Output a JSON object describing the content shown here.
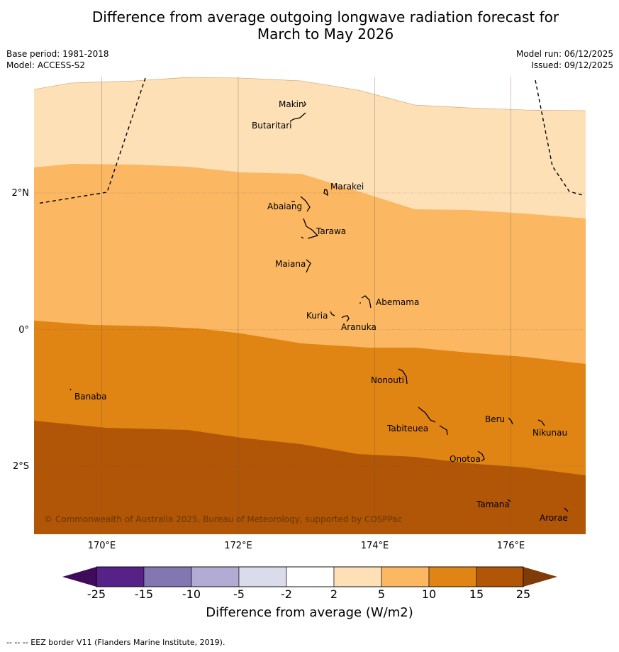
{
  "title": {
    "line1": "Difference from average outgoing longwave radiation forecast for",
    "line2": "March to May 2026"
  },
  "meta": {
    "base_period": "Base period: 1981-2018",
    "model": "Model: ACCESS-S2",
    "model_run": "Model run: 06/12/2025",
    "issued": "Issued: 09/12/2025"
  },
  "axes": {
    "lon_labels": [
      "170°E",
      "172°E",
      "174°E",
      "176°E"
    ],
    "lat_labels": [
      "2°N",
      "0°",
      "2°S"
    ]
  },
  "places": [
    {
      "name": "Makin"
    },
    {
      "name": "Butaritari"
    },
    {
      "name": "Marakei"
    },
    {
      "name": "Abaiang"
    },
    {
      "name": "Tarawa"
    },
    {
      "name": "Maiana"
    },
    {
      "name": "Abemama"
    },
    {
      "name": "Kuria"
    },
    {
      "name": "Aranuka"
    },
    {
      "name": "Nonouti"
    },
    {
      "name": "Banaba"
    },
    {
      "name": "Beru"
    },
    {
      "name": "Nikunau"
    },
    {
      "name": "Tabiteuea"
    },
    {
      "name": "Onotoa"
    },
    {
      "name": "Tamana"
    },
    {
      "name": "Arorae"
    }
  ],
  "copyright": "© Commonwealth of Australia 2025, Bureau of Meteorology, supported by COSPPac",
  "colorbar": {
    "title": "Difference from average (W/m2)",
    "ticks": [
      "-25",
      "-15",
      "-10",
      "-5",
      "-2",
      "2",
      "5",
      "10",
      "15",
      "25"
    ],
    "colors": [
      "#3f0c5c",
      "#562287",
      "#8277b0",
      "#b2acd4",
      "#dadbeb",
      "#ffffff",
      "#fde0b6",
      "#fbb762",
      "#e08414",
      "#b05606",
      "#7f3b08"
    ]
  },
  "footer": "--  --  -- EEZ border V11 (Flanders Marine Institute, 2019)."
}
